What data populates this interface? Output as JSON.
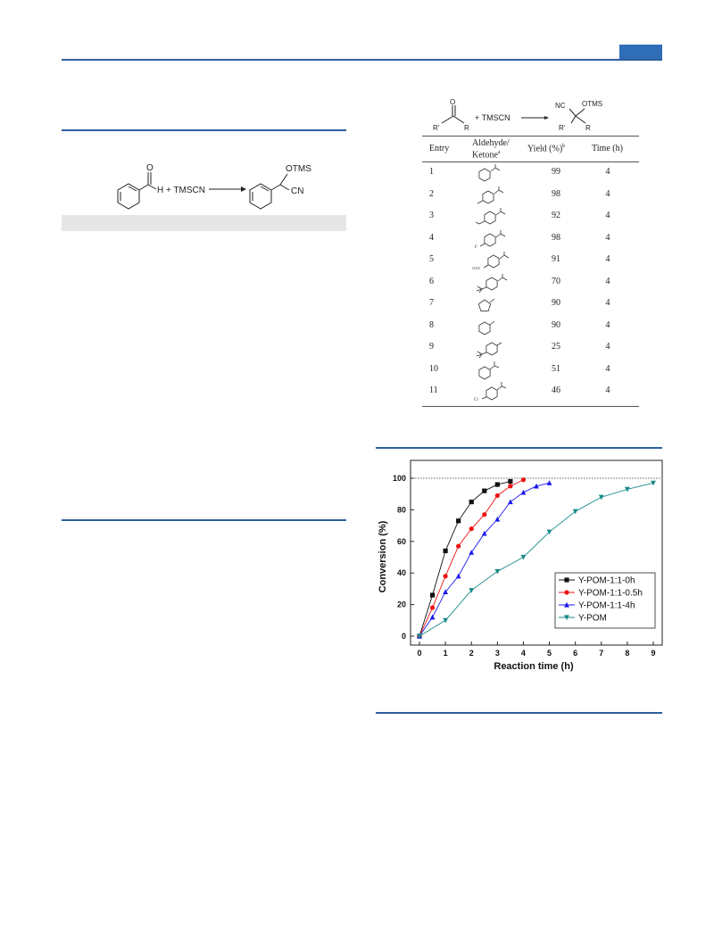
{
  "scheme": {
    "reagent": "H + TMSCN",
    "product_group": "OTMS",
    "product_sub": "CN"
  },
  "table_scheme": {
    "reactant_r1": "R'",
    "reactant_r": "R",
    "reactant_o": "O",
    "reagent": "+ TMSCN",
    "product_nc": "NC",
    "product_otms": "OTMS",
    "product_r1": "R'",
    "product_r": "R"
  },
  "table": {
    "headers": {
      "entry": "Entry",
      "substrate_line1": "Aldehyde/",
      "substrate_line2": "Ketone",
      "substrate_sup": "a",
      "yield": "Yield (%)",
      "yield_sup": "b",
      "time": "Time (h)"
    },
    "rows": [
      {
        "entry": "1",
        "yield": "99",
        "time": "4",
        "struct": "benzaldehyde"
      },
      {
        "entry": "2",
        "yield": "98",
        "time": "4",
        "struct": "4-methylbenzaldehyde"
      },
      {
        "entry": "3",
        "yield": "92",
        "time": "4",
        "struct": "4-methoxybenzaldehyde"
      },
      {
        "entry": "4",
        "yield": "98",
        "time": "4",
        "struct": "4-fluorobenzaldehyde"
      },
      {
        "entry": "5",
        "yield": "91",
        "time": "4",
        "struct": "4-nitrobenzaldehyde"
      },
      {
        "entry": "6",
        "yield": "70",
        "time": "4",
        "struct": "4-tert-butylbenzaldehyde"
      },
      {
        "entry": "7",
        "yield": "90",
        "time": "4",
        "struct": "cyclopentanone"
      },
      {
        "entry": "8",
        "yield": "90",
        "time": "4",
        "struct": "cyclohexanone"
      },
      {
        "entry": "9",
        "yield": "25",
        "time": "4",
        "struct": "4-tert-butylcyclohexanone"
      },
      {
        "entry": "10",
        "yield": "51",
        "time": "4",
        "struct": "acetophenone"
      },
      {
        "entry": "11",
        "yield": "46",
        "time": "4",
        "struct": "4-chloroacetophenone"
      }
    ],
    "struct_labels": {
      "f": "F",
      "no2": "O2N",
      "cl": "Cl"
    }
  },
  "chart_data": {
    "type": "line",
    "xlabel": "Reaction time (h)",
    "ylabel": "Conversion (%)",
    "xlim": [
      0,
      9
    ],
    "ylim": [
      0,
      100
    ],
    "xticks": [
      "0",
      "1",
      "2",
      "3",
      "4",
      "5",
      "6",
      "7",
      "8",
      "9"
    ],
    "yticks": [
      "0",
      "20",
      "40",
      "60",
      "80",
      "100"
    ],
    "reference_line_y": 100,
    "legend_position": "lower-right",
    "series": [
      {
        "name": "Y-POM-1:1-0h",
        "color": "#111111",
        "marker": "square",
        "x": [
          0,
          0.5,
          1,
          1.5,
          2,
          2.5,
          3,
          3.5
        ],
        "y": [
          0,
          26,
          54,
          73,
          85,
          92,
          96,
          98
        ]
      },
      {
        "name": "Y-POM-1:1-0.5h",
        "color": "#ee1111",
        "marker": "circle",
        "x": [
          0,
          0.5,
          1,
          1.5,
          2,
          2.5,
          3,
          3.5,
          4
        ],
        "y": [
          0,
          18,
          38,
          57,
          68,
          77,
          89,
          95,
          99
        ]
      },
      {
        "name": "Y-POM-1:1-4h",
        "color": "#1a1aee",
        "marker": "triangle-up",
        "x": [
          0,
          0.5,
          1,
          1.5,
          2,
          2.5,
          3,
          3.5,
          4,
          4.5,
          5
        ],
        "y": [
          0,
          12,
          28,
          38,
          53,
          65,
          74,
          85,
          91,
          95,
          97
        ]
      },
      {
        "name": "Y-POM",
        "color": "#1a8a8a",
        "marker": "triangle-down",
        "x": [
          0,
          1,
          2,
          3,
          4,
          5,
          6,
          7,
          8,
          9
        ],
        "y": [
          0,
          10,
          29,
          41,
          50,
          66,
          79,
          88,
          93,
          97
        ]
      }
    ]
  }
}
